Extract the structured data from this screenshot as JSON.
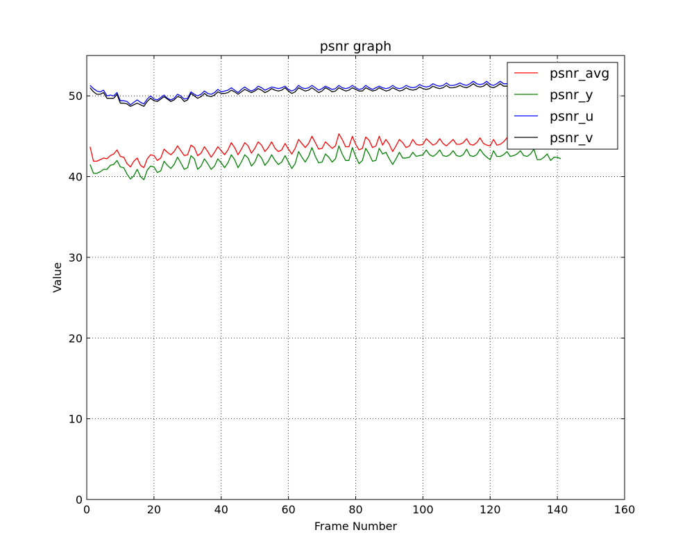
{
  "chart_data": {
    "type": "line",
    "title": "psnr graph",
    "xlabel": "Frame Number",
    "ylabel": "Value",
    "xlim": [
      0,
      160
    ],
    "ylim": [
      0,
      55
    ],
    "xticks": [
      0,
      20,
      40,
      60,
      80,
      100,
      120,
      140,
      160
    ],
    "yticks": [
      0,
      10,
      20,
      30,
      40,
      50
    ],
    "grid": true,
    "legend_position": "top-right",
    "series": [
      {
        "name": "psnr_avg",
        "color": "#ff0000",
        "x": [
          1,
          2,
          3,
          4,
          5,
          6,
          7,
          8,
          9,
          10,
          11,
          12,
          13,
          14,
          15,
          16,
          17,
          18,
          19,
          20,
          21,
          22,
          23,
          24,
          25,
          26,
          27,
          28,
          29,
          30,
          31,
          32,
          33,
          34,
          35,
          36,
          37,
          38,
          39,
          40,
          41,
          42,
          43,
          44,
          45,
          46,
          47,
          48,
          49,
          50,
          51,
          52,
          53,
          54,
          55,
          56,
          57,
          58,
          59,
          60,
          61,
          62,
          63,
          64,
          65,
          66,
          67,
          68,
          69,
          70,
          71,
          72,
          73,
          74,
          75,
          76,
          77,
          78,
          79,
          80,
          81,
          82,
          83,
          84,
          85,
          86,
          87,
          88,
          89,
          90,
          91,
          92,
          93,
          94,
          95,
          96,
          97,
          98,
          99,
          100,
          101,
          102,
          103,
          104,
          105,
          106,
          107,
          108,
          109,
          110,
          111,
          112,
          113,
          114,
          115,
          116,
          117,
          118,
          119,
          120,
          121,
          122,
          123,
          124,
          125,
          126,
          127,
          128,
          129,
          130,
          131,
          132,
          133,
          134,
          135,
          136,
          137,
          138,
          139,
          140,
          141
        ],
        "y": [
          43.7,
          41.9,
          41.9,
          42.1,
          42.3,
          42.2,
          42.6,
          42.8,
          43.3,
          42.5,
          42.4,
          41.6,
          41.2,
          41.9,
          42.3,
          41.4,
          41.1,
          42.2,
          42.7,
          42.6,
          42.0,
          42.3,
          43.4,
          43.0,
          42.7,
          43.1,
          43.8,
          43.2,
          42.6,
          42.7,
          43.9,
          43.6,
          42.6,
          42.9,
          43.7,
          43.1,
          42.4,
          43.0,
          43.7,
          43.2,
          42.7,
          43.3,
          44.2,
          43.6,
          42.7,
          43.4,
          44.2,
          43.8,
          42.9,
          43.5,
          44.3,
          43.9,
          43.1,
          43.6,
          44.3,
          43.5,
          43.1,
          43.3,
          44.1,
          43.4,
          42.8,
          43.5,
          44.6,
          44.1,
          43.6,
          44.1,
          45.0,
          44.2,
          43.4,
          43.5,
          44.3,
          43.9,
          43.5,
          43.8,
          45.3,
          44.6,
          43.7,
          43.7,
          45.0,
          44.0,
          43.3,
          43.5,
          44.9,
          44.5,
          43.6,
          43.8,
          45.0,
          43.9,
          44.6,
          44.0,
          43.1,
          43.8,
          44.6,
          44.2,
          43.6,
          43.8,
          44.6,
          44.0,
          43.9,
          44.0,
          44.7,
          44.3,
          43.9,
          44.1,
          44.7,
          44.1,
          43.8,
          44.2,
          44.6,
          44.0,
          44.0,
          44.2,
          44.7,
          44.0,
          43.9,
          44.2,
          44.8,
          44.1,
          43.9,
          43.8,
          44.6,
          43.9,
          44.0,
          44.3,
          44.8,
          44.2,
          44.0,
          44.2,
          44.9,
          44.3,
          44.1,
          44.3,
          44.7,
          44.1,
          44.1,
          44.4,
          44.8,
          44.3,
          44.2,
          44.5,
          44.6
        ]
      },
      {
        "name": "psnr_y",
        "color": "#008000",
        "x": [
          1,
          2,
          3,
          4,
          5,
          6,
          7,
          8,
          9,
          10,
          11,
          12,
          13,
          14,
          15,
          16,
          17,
          18,
          19,
          20,
          21,
          22,
          23,
          24,
          25,
          26,
          27,
          28,
          29,
          30,
          31,
          32,
          33,
          34,
          35,
          36,
          37,
          38,
          39,
          40,
          41,
          42,
          43,
          44,
          45,
          46,
          47,
          48,
          49,
          50,
          51,
          52,
          53,
          54,
          55,
          56,
          57,
          58,
          59,
          60,
          61,
          62,
          63,
          64,
          65,
          66,
          67,
          68,
          69,
          70,
          71,
          72,
          73,
          74,
          75,
          76,
          77,
          78,
          79,
          80,
          81,
          82,
          83,
          84,
          85,
          86,
          87,
          88,
          89,
          90,
          91,
          92,
          93,
          94,
          95,
          96,
          97,
          98,
          99,
          100,
          101,
          102,
          103,
          104,
          105,
          106,
          107,
          108,
          109,
          110,
          111,
          112,
          113,
          114,
          115,
          116,
          117,
          118,
          119,
          120,
          121,
          122,
          123,
          124,
          125,
          126,
          127,
          128,
          129,
          130,
          131,
          132,
          133,
          134,
          135,
          136,
          137,
          138,
          139,
          140,
          141
        ],
        "y": [
          41.5,
          40.4,
          40.4,
          40.6,
          40.9,
          40.9,
          41.4,
          41.5,
          42.0,
          41.2,
          41.1,
          40.3,
          39.7,
          40.1,
          40.9,
          40.0,
          39.6,
          40.8,
          41.3,
          41.2,
          40.5,
          40.7,
          41.9,
          41.4,
          41.0,
          41.5,
          42.4,
          41.7,
          40.9,
          41.1,
          42.6,
          42.2,
          40.9,
          41.3,
          42.2,
          41.6,
          40.9,
          41.3,
          42.2,
          41.7,
          41.1,
          41.7,
          42.7,
          42.1,
          41.1,
          41.8,
          42.7,
          42.3,
          41.3,
          41.8,
          42.8,
          42.3,
          41.4,
          41.9,
          42.7,
          42.0,
          41.5,
          41.8,
          42.6,
          41.8,
          41.0,
          41.6,
          43.1,
          42.4,
          41.8,
          42.5,
          43.6,
          42.5,
          41.7,
          41.8,
          42.8,
          42.4,
          41.8,
          42.2,
          43.8,
          42.8,
          42.0,
          42.0,
          43.6,
          42.5,
          41.6,
          42.0,
          43.5,
          42.8,
          41.9,
          42.0,
          43.5,
          42.8,
          43.0,
          42.2,
          41.5,
          42.2,
          43.0,
          42.3,
          42.3,
          42.4,
          43.0,
          42.5,
          42.6,
          42.7,
          43.3,
          42.7,
          42.5,
          42.8,
          43.3,
          42.6,
          42.5,
          42.7,
          43.2,
          42.6,
          42.5,
          42.7,
          43.4,
          42.6,
          42.5,
          42.7,
          43.4,
          42.8,
          42.4,
          42.1,
          43.2,
          42.5,
          42.5,
          42.7,
          43.1,
          42.5,
          42.6,
          42.8,
          43.2,
          42.6,
          42.5,
          42.8,
          43.4,
          42.1,
          42.1,
          42.4,
          42.8,
          42.0,
          42.4,
          42.4,
          42.2
        ]
      },
      {
        "name": "psnr_u",
        "color": "#0000ff",
        "x": [
          1,
          2,
          3,
          4,
          5,
          6,
          7,
          8,
          9,
          10,
          11,
          12,
          13,
          14,
          15,
          16,
          17,
          18,
          19,
          20,
          21,
          22,
          23,
          24,
          25,
          26,
          27,
          28,
          29,
          30,
          31,
          32,
          33,
          34,
          35,
          36,
          37,
          38,
          39,
          40,
          41,
          42,
          43,
          44,
          45,
          46,
          47,
          48,
          49,
          50,
          51,
          52,
          53,
          54,
          55,
          56,
          57,
          58,
          59,
          60,
          61,
          62,
          63,
          64,
          65,
          66,
          67,
          68,
          69,
          70,
          71,
          72,
          73,
          74,
          75,
          76,
          77,
          78,
          79,
          80,
          81,
          82,
          83,
          84,
          85,
          86,
          87,
          88,
          89,
          90,
          91,
          92,
          93,
          94,
          95,
          96,
          97,
          98,
          99,
          100,
          101,
          102,
          103,
          104,
          105,
          106,
          107,
          108,
          109,
          110,
          111,
          112,
          113,
          114,
          115,
          116,
          117,
          118,
          119,
          120,
          121,
          122,
          123,
          124,
          125
        ],
        "y": [
          51.3,
          50.9,
          50.6,
          50.5,
          50.7,
          50.0,
          50.1,
          50.0,
          50.4,
          49.4,
          49.4,
          49.3,
          48.9,
          49.2,
          49.5,
          49.2,
          49.0,
          49.6,
          50.0,
          49.6,
          49.5,
          49.8,
          50.1,
          49.7,
          49.5,
          49.7,
          50.2,
          50.0,
          49.6,
          49.7,
          50.5,
          50.2,
          50.0,
          50.2,
          50.6,
          50.3,
          50.2,
          50.4,
          50.8,
          50.5,
          50.6,
          50.7,
          51.0,
          50.7,
          50.4,
          50.8,
          51.1,
          50.8,
          50.6,
          50.8,
          51.2,
          51.0,
          50.7,
          50.9,
          51.1,
          51.0,
          50.9,
          51.0,
          51.2,
          50.8,
          50.6,
          50.8,
          51.3,
          51.0,
          50.9,
          51.0,
          51.3,
          51.0,
          50.7,
          50.9,
          51.2,
          51.0,
          50.8,
          50.9,
          51.3,
          51.0,
          50.9,
          51.0,
          51.3,
          51.0,
          50.8,
          50.9,
          51.3,
          51.0,
          50.8,
          51.0,
          51.2,
          51.0,
          50.9,
          51.0,
          51.3,
          51.0,
          50.9,
          51.0,
          51.3,
          51.1,
          51.0,
          51.1,
          51.4,
          51.2,
          51.1,
          51.2,
          51.5,
          51.3,
          51.2,
          51.3,
          51.6,
          51.3,
          51.3,
          51.4,
          51.6,
          51.4,
          51.3,
          51.5,
          51.8,
          51.5,
          51.4,
          51.5,
          51.8,
          51.4,
          51.3,
          51.5,
          51.8,
          51.5,
          51.5
        ]
      },
      {
        "name": "psnr_v",
        "color": "#000000",
        "x": [
          1,
          2,
          3,
          4,
          5,
          6,
          7,
          8,
          9,
          10,
          11,
          12,
          13,
          14,
          15,
          16,
          17,
          18,
          19,
          20,
          21,
          22,
          23,
          24,
          25,
          26,
          27,
          28,
          29,
          30,
          31,
          32,
          33,
          34,
          35,
          36,
          37,
          38,
          39,
          40,
          41,
          42,
          43,
          44,
          45,
          46,
          47,
          48,
          49,
          50,
          51,
          52,
          53,
          54,
          55,
          56,
          57,
          58,
          59,
          60,
          61,
          62,
          63,
          64,
          65,
          66,
          67,
          68,
          69,
          70,
          71,
          72,
          73,
          74,
          75,
          76,
          77,
          78,
          79,
          80,
          81,
          82,
          83,
          84,
          85,
          86,
          87,
          88,
          89,
          90,
          91,
          92,
          93,
          94,
          95,
          96,
          97,
          98,
          99,
          100,
          101,
          102,
          103,
          104,
          105,
          106,
          107,
          108,
          109,
          110,
          111,
          112,
          113,
          114,
          115,
          116,
          117,
          118,
          119,
          120,
          121,
          122,
          123,
          124,
          125
        ],
        "y": [
          51.0,
          50.5,
          50.2,
          50.2,
          50.4,
          49.7,
          49.7,
          49.7,
          50.2,
          49.1,
          49.1,
          49.0,
          48.7,
          48.9,
          49.1,
          48.9,
          48.7,
          49.3,
          49.7,
          49.4,
          49.3,
          49.6,
          49.9,
          49.6,
          49.3,
          49.5,
          49.9,
          49.8,
          49.3,
          49.5,
          50.3,
          50.0,
          49.7,
          49.9,
          50.3,
          50.0,
          49.9,
          50.1,
          50.5,
          50.3,
          50.3,
          50.4,
          50.7,
          50.5,
          50.2,
          50.5,
          50.8,
          50.6,
          50.4,
          50.6,
          50.9,
          50.7,
          50.4,
          50.6,
          50.9,
          50.7,
          50.6,
          50.7,
          51.0,
          50.6,
          50.3,
          50.5,
          51.0,
          50.8,
          50.6,
          50.7,
          51.0,
          50.7,
          50.4,
          50.6,
          51.0,
          50.8,
          50.5,
          50.6,
          51.0,
          50.8,
          50.6,
          50.7,
          51.0,
          50.8,
          50.6,
          50.6,
          51.0,
          50.8,
          50.6,
          50.7,
          51.0,
          50.8,
          50.6,
          50.7,
          51.0,
          50.8,
          50.6,
          50.7,
          51.0,
          50.8,
          50.7,
          50.8,
          51.1,
          50.9,
          50.8,
          50.9,
          51.2,
          51.0,
          50.9,
          51.0,
          51.3,
          51.0,
          51.0,
          51.1,
          51.3,
          51.1,
          51.0,
          51.2,
          51.5,
          51.2,
          51.1,
          51.2,
          51.5,
          51.1,
          51.0,
          51.2,
          51.5,
          51.2,
          51.2
        ]
      }
    ]
  }
}
